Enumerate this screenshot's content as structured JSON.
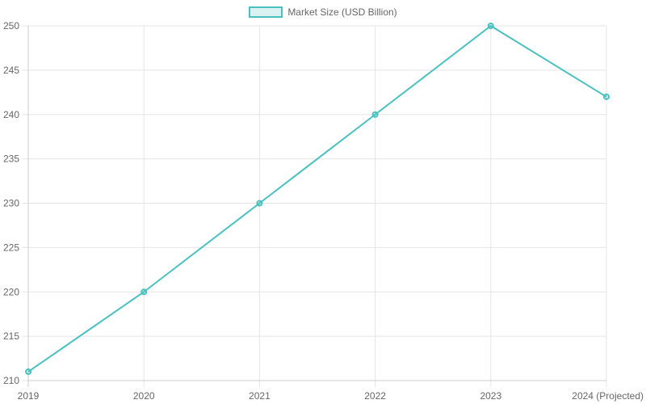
{
  "legend": {
    "label": "Market Size (USD Billion)",
    "color": "#4bc0c0"
  },
  "chart_data": {
    "type": "line",
    "title": "",
    "xlabel": "",
    "ylabel": "",
    "categories": [
      "2019",
      "2020",
      "2021",
      "2022",
      "2023",
      "2024 (Projected)"
    ],
    "series": [
      {
        "name": "Market Size (USD Billion)",
        "values": [
          211,
          220,
          230,
          240,
          250,
          242
        ],
        "color": "#4bc0c0"
      }
    ],
    "ylim": [
      210,
      250
    ],
    "yticks": [
      210,
      215,
      220,
      225,
      230,
      235,
      240,
      245,
      250
    ],
    "grid": true,
    "legend_position": "top"
  }
}
